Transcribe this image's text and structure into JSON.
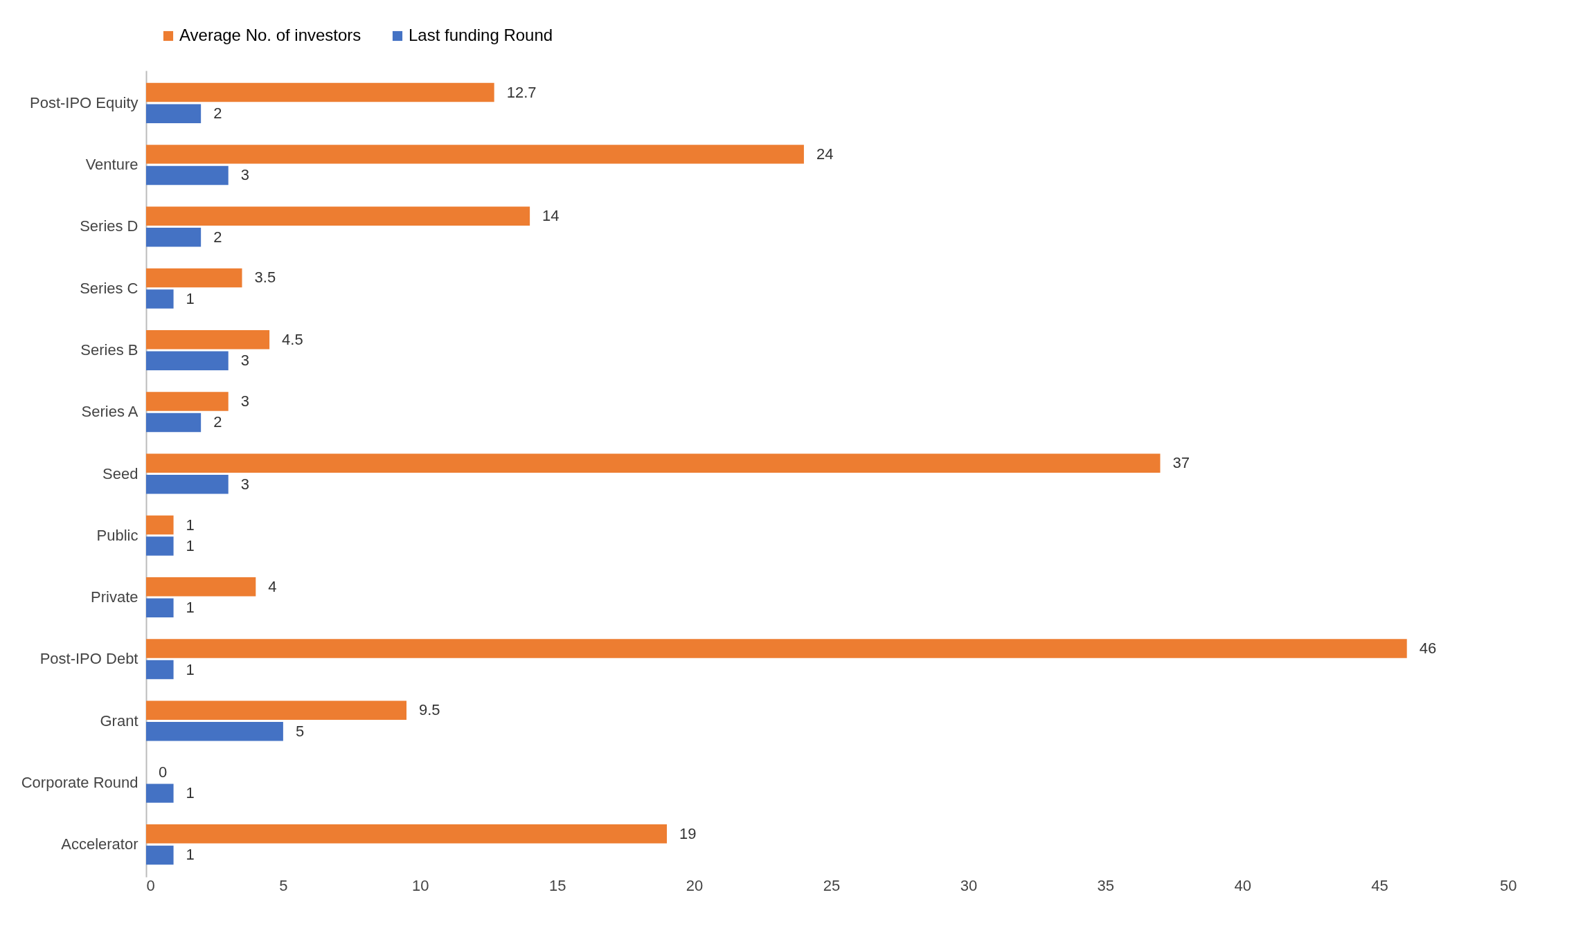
{
  "chart_data": {
    "type": "bar",
    "orientation": "horizontal",
    "categories": [
      "Post-IPO Equity",
      "Venture",
      "Series D",
      "Series C",
      "Series B",
      "Series A",
      "Seed",
      "Public",
      "Private",
      "Post-IPO Debt",
      "Grant",
      "Corporate Round",
      "Accelerator"
    ],
    "series": [
      {
        "name": "Average No. of investors",
        "color": "#ed7d31",
        "values": [
          12.7,
          24,
          14,
          3.5,
          4.5,
          3,
          37,
          1,
          4,
          46,
          9.5,
          0,
          19
        ]
      },
      {
        "name": "Last funding Round",
        "color": "#4472c4",
        "values": [
          2,
          3,
          2,
          1,
          3,
          2,
          3,
          1,
          1,
          1,
          5,
          1,
          1
        ]
      }
    ],
    "xlim": [
      0,
      50
    ],
    "xticks": [
      0,
      5,
      10,
      15,
      20,
      25,
      30,
      35,
      40,
      45,
      50
    ],
    "grid": false,
    "legend": "top",
    "data_labels": true
  }
}
